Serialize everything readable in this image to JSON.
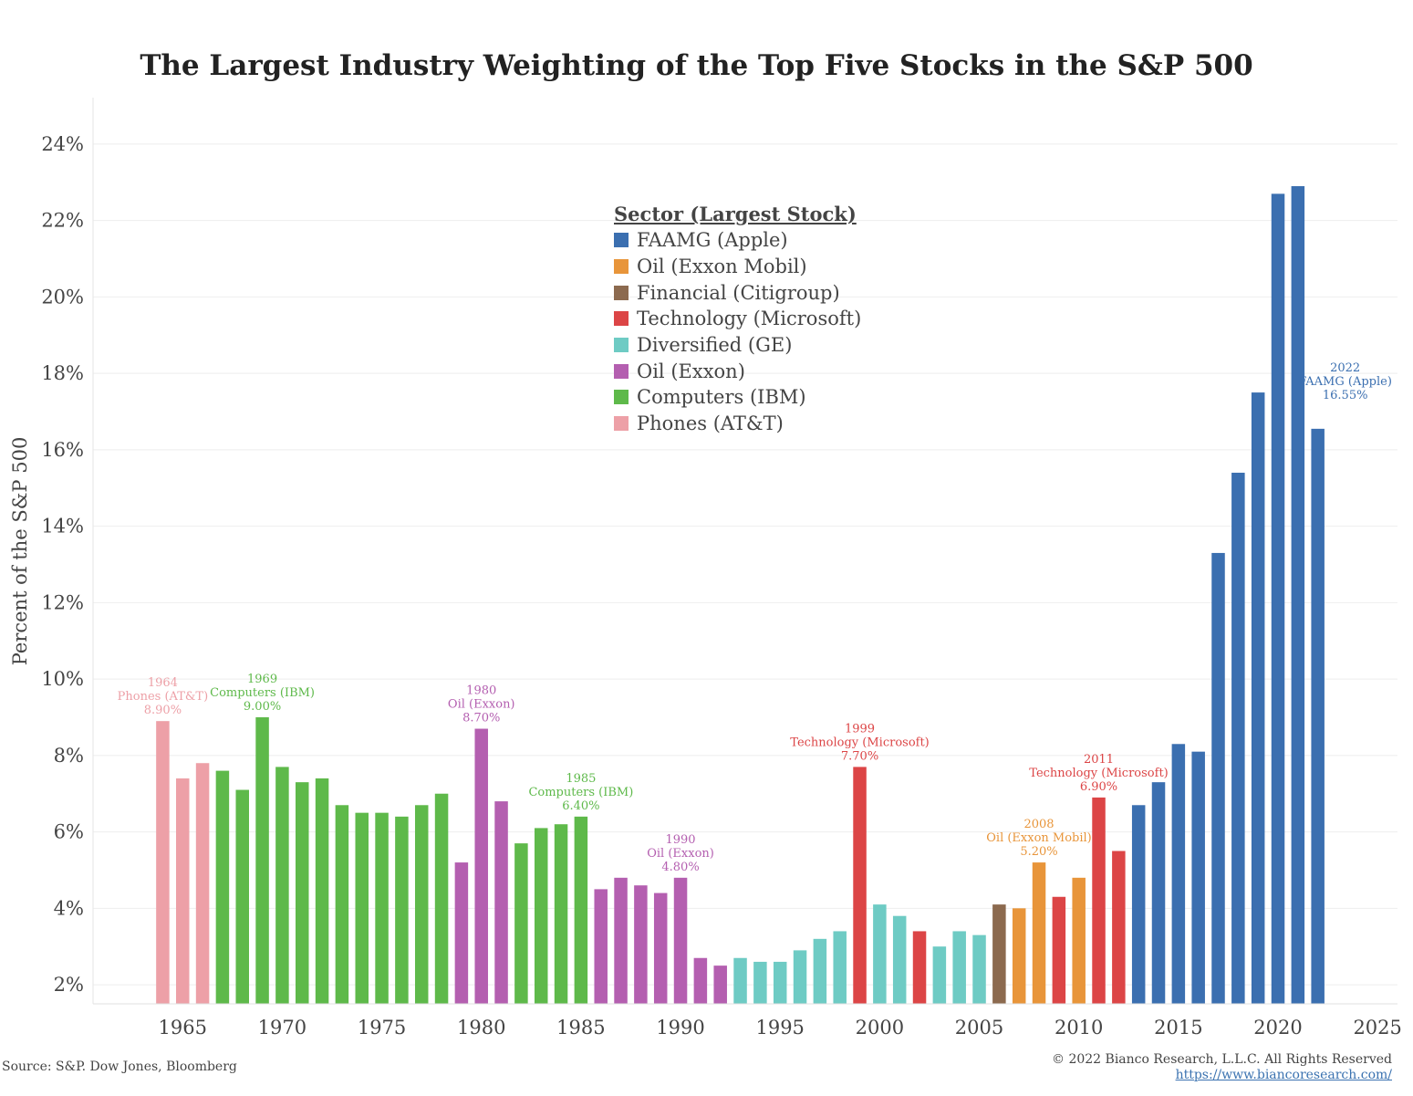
{
  "chart_data": {
    "type": "bar",
    "title": "The Largest Industry Weighting of the Top Five Stocks in the S&P 500",
    "ylabel": "Percent of the S&P 500",
    "xlabel": "",
    "ylim": [
      1.5,
      24.5
    ],
    "xlim": [
      1960.5,
      2026
    ],
    "y_ticks": [
      2,
      4,
      6,
      8,
      10,
      12,
      14,
      16,
      18,
      20,
      22,
      24
    ],
    "y_tick_labels": [
      "2%",
      "4%",
      "6%",
      "8%",
      "10%",
      "12%",
      "14%",
      "16%",
      "18%",
      "20%",
      "22%",
      "24%"
    ],
    "x_ticks": [
      1965,
      1970,
      1975,
      1980,
      1985,
      1990,
      1995,
      2000,
      2005,
      2010,
      2015,
      2020,
      2025
    ],
    "x_tick_labels": [
      "1965",
      "1970",
      "1975",
      "1980",
      "1985",
      "1990",
      "1995",
      "2000",
      "2005",
      "2010",
      "2015",
      "2020",
      "2025"
    ],
    "grid": "horizontal",
    "legend_position": "top-center",
    "legend_title": "Sector (Largest Stock)",
    "sectors": [
      {
        "key": "faamg",
        "name": "FAAMG (Apple)",
        "color": "#3b6fb0"
      },
      {
        "key": "oil_em",
        "name": "Oil (Exxon Mobil)",
        "color": "#e8953a"
      },
      {
        "key": "fin",
        "name": "Financial (Citigroup)",
        "color": "#8c6a4f"
      },
      {
        "key": "tech",
        "name": "Technology (Microsoft)",
        "color": "#dc4546"
      },
      {
        "key": "div",
        "name": "Diversified (GE)",
        "color": "#6ecbc4"
      },
      {
        "key": "oil_x",
        "name": "Oil (Exxon)",
        "color": "#b45fb0"
      },
      {
        "key": "comp",
        "name": "Computers (IBM)",
        "color": "#5eb94a"
      },
      {
        "key": "phones",
        "name": "Phones (AT&T)",
        "color": "#eda0a7"
      }
    ],
    "x": [
      1964,
      1965,
      1966,
      1967,
      1968,
      1969,
      1970,
      1971,
      1972,
      1973,
      1974,
      1975,
      1976,
      1977,
      1978,
      1979,
      1980,
      1981,
      1982,
      1983,
      1984,
      1985,
      1986,
      1987,
      1988,
      1989,
      1990,
      1991,
      1992,
      1993,
      1994,
      1995,
      1996,
      1997,
      1998,
      1999,
      2000,
      2001,
      2002,
      2003,
      2004,
      2005,
      2006,
      2007,
      2008,
      2009,
      2010,
      2011,
      2012,
      2013,
      2014,
      2015,
      2016,
      2017,
      2018,
      2019,
      2020,
      2021,
      2022
    ],
    "values": [
      8.9,
      7.4,
      7.8,
      7.6,
      7.1,
      9.0,
      7.7,
      7.3,
      7.4,
      6.7,
      6.5,
      6.5,
      6.4,
      6.7,
      7.0,
      5.2,
      8.7,
      6.8,
      5.7,
      6.1,
      6.2,
      6.4,
      4.5,
      4.8,
      4.6,
      4.4,
      4.8,
      2.7,
      2.5,
      2.7,
      2.6,
      2.6,
      2.9,
      3.2,
      3.4,
      7.7,
      4.1,
      3.8,
      3.4,
      3.0,
      3.4,
      3.3,
      4.1,
      4.0,
      5.2,
      4.3,
      4.8,
      6.9,
      5.5,
      6.7,
      7.3,
      8.3,
      8.1,
      13.3,
      15.4,
      17.5,
      22.7,
      22.9,
      16.55
    ],
    "sector_of_bar": [
      "phones",
      "phones",
      "phones",
      "comp",
      "comp",
      "comp",
      "comp",
      "comp",
      "comp",
      "comp",
      "comp",
      "comp",
      "comp",
      "comp",
      "comp",
      "oil_x",
      "oil_x",
      "oil_x",
      "comp",
      "comp",
      "comp",
      "comp",
      "oil_x",
      "oil_x",
      "oil_x",
      "oil_x",
      "oil_x",
      "oil_x",
      "oil_x",
      "div",
      "div",
      "div",
      "div",
      "div",
      "div",
      "tech",
      "div",
      "div",
      "tech",
      "div",
      "div",
      "div",
      "fin",
      "oil_em",
      "oil_em",
      "tech",
      "oil_em",
      "tech",
      "tech",
      "faamg",
      "faamg",
      "faamg",
      "faamg",
      "faamg",
      "faamg",
      "faamg",
      "faamg",
      "faamg",
      "faamg"
    ],
    "annotations": [
      {
        "year": 1964,
        "value": 8.9,
        "sector": "phones",
        "lines": [
          "1964",
          "Phones (AT&T)",
          "8.90%"
        ]
      },
      {
        "year": 1969,
        "value": 9.0,
        "sector": "comp",
        "lines": [
          "1969",
          "Computers (IBM)",
          "9.00%"
        ]
      },
      {
        "year": 1980,
        "value": 8.7,
        "sector": "oil_x",
        "lines": [
          "1980",
          "Oil (Exxon)",
          "8.70%"
        ]
      },
      {
        "year": 1985,
        "value": 6.4,
        "sector": "comp",
        "lines": [
          "1985",
          "Computers (IBM)",
          "6.40%"
        ]
      },
      {
        "year": 1990,
        "value": 4.8,
        "sector": "oil_x",
        "lines": [
          "1990",
          "Oil (Exxon)",
          "4.80%"
        ]
      },
      {
        "year": 1999,
        "value": 7.7,
        "sector": "tech",
        "lines": [
          "1999",
          "Technology (Microsoft)",
          "7.70%"
        ]
      },
      {
        "year": 2008,
        "value": 5.2,
        "sector": "oil_em",
        "lines": [
          "2008",
          "Oil (Exxon Mobil)",
          "5.20%"
        ]
      },
      {
        "year": 2011,
        "value": 6.9,
        "sector": "tech",
        "lines": [
          "2011",
          "Technology (Microsoft)",
          "6.90%"
        ]
      },
      {
        "year": 2022,
        "value": 16.55,
        "sector": "faamg",
        "side": "right",
        "lines": [
          "2022",
          "FAAMG (Apple)",
          "16.55%"
        ]
      }
    ]
  },
  "footer": {
    "source": "Source: S&P. Dow Jones, Bloomberg",
    "copyright": "© 2022 Bianco Research, L.L.C. All Rights Reserved",
    "url": "https://www.biancoresearch.com/"
  }
}
